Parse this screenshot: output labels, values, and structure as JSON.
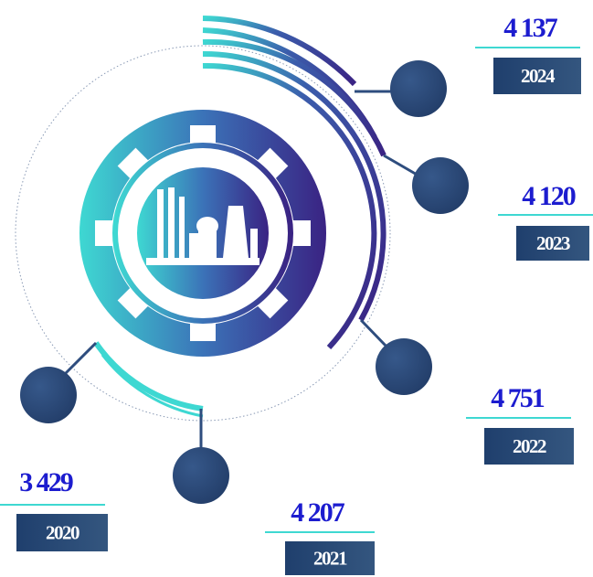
{
  "items": [
    {
      "value": "4 137",
      "year": "2024"
    },
    {
      "value": "4 120",
      "year": "2023"
    },
    {
      "value": "4 751",
      "year": "2022"
    },
    {
      "value": "4 207",
      "year": "2021"
    },
    {
      "value": "3 429",
      "year": "2020"
    }
  ]
}
